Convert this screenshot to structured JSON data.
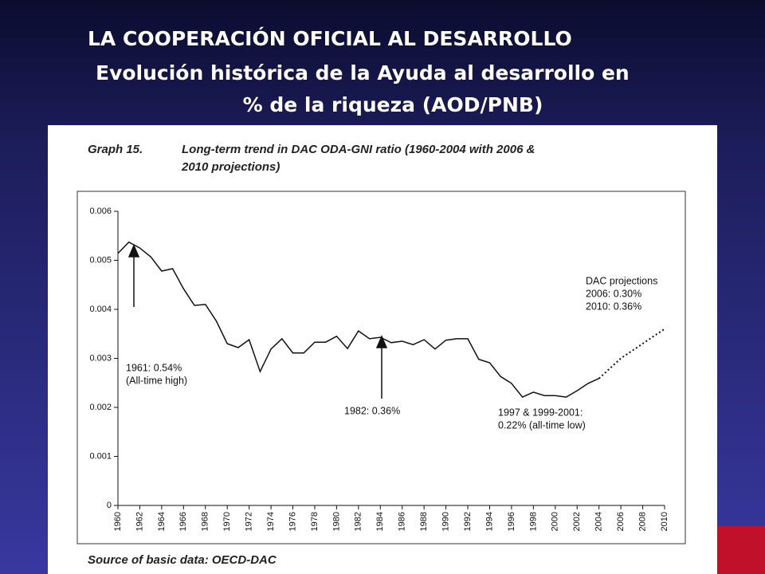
{
  "slide": {
    "title_lines": [
      "LA COOPERACIÓN OFICIAL AL DESARROLLO",
      "Evolución histórica de la Ayuda al desarrollo en",
      "% de la riqueza (AOD/PNB)"
    ]
  },
  "chart_data": {
    "type": "line",
    "graph_label": "Graph 15.",
    "title_lines": [
      "Long-term trend in DAC ODA-GNI ratio (1960-2004 with 2006 &",
      "2010 projections)"
    ],
    "source": "Source of basic data: OECD-DAC",
    "series": [
      {
        "color": "#111111",
        "style": "solid",
        "x": [
          1960,
          1961,
          1962,
          1963,
          1964,
          1965,
          1966,
          1967,
          1968,
          1969,
          1970,
          1971,
          1972,
          1973,
          1974,
          1975,
          1976,
          1977,
          1978,
          1979,
          1980,
          1981,
          1982,
          1983,
          1984,
          1985,
          1986,
          1987,
          1988,
          1989,
          1990,
          1991,
          1992,
          1993,
          1994,
          1995,
          1996,
          1997,
          1998,
          1999,
          2000,
          2001,
          2002,
          2003,
          2004
        ],
        "values": [
          0.00514,
          0.00537,
          0.00525,
          0.00507,
          0.00478,
          0.00483,
          0.00442,
          0.00408,
          0.0041,
          0.00376,
          0.0033,
          0.00322,
          0.00338,
          0.00273,
          0.00319,
          0.0034,
          0.00311,
          0.00311,
          0.00333,
          0.00333,
          0.00345,
          0.0032,
          0.00356,
          0.0034,
          0.00343,
          0.00332,
          0.00335,
          0.00328,
          0.00338,
          0.00319,
          0.00337,
          0.0034,
          0.0034,
          0.00298,
          0.00291,
          0.00263,
          0.00249,
          0.00221,
          0.00231,
          0.00224,
          0.00224,
          0.00221,
          0.00234,
          0.00249,
          0.00259
        ]
      },
      {
        "color": "#111111",
        "style": "dotted",
        "x": [
          2004,
          2006,
          2010
        ],
        "values": [
          0.00259,
          0.003,
          0.0036
        ]
      }
    ],
    "xlim": [
      1960,
      2010
    ],
    "xticks": [
      1960,
      1962,
      1964,
      1966,
      1968,
      1970,
      1972,
      1974,
      1976,
      1978,
      1980,
      1982,
      1984,
      1986,
      1988,
      1990,
      1992,
      1994,
      1996,
      1998,
      2000,
      2002,
      2004,
      2006,
      2008,
      2010
    ],
    "ylim": [
      0,
      0.006
    ],
    "yticks": [
      0,
      0.001,
      0.002,
      0.003,
      0.004,
      0.005,
      0.006
    ],
    "annotations": [
      {
        "lines": [
          "1961: 0.54%",
          "(All-time high)"
        ]
      },
      {
        "lines": [
          "1982: 0.36%"
        ]
      },
      {
        "lines": [
          "1997 & 1999-2001:",
          "0.22% (all-time low)"
        ]
      },
      {
        "lines": [
          "DAC projections",
          "2006: 0.30%",
          "2010: 0.36%"
        ]
      }
    ]
  }
}
